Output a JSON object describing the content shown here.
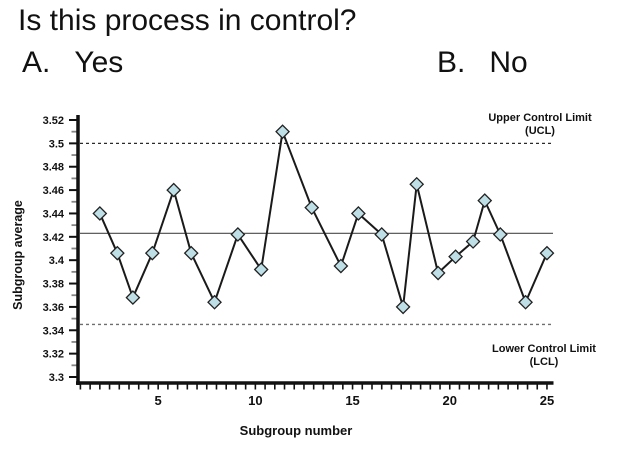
{
  "slide": {
    "title": "Is this process in control?",
    "answers": [
      {
        "letter": "A.",
        "label": "Yes"
      },
      {
        "letter": "B.",
        "label": "No"
      }
    ]
  },
  "chart_data": {
    "type": "line",
    "subtype": "control-chart",
    "title": "",
    "xlabel": "Subgroup number",
    "ylabel": "Subgroup average",
    "x": [
      2,
      2.9,
      3.7,
      4.7,
      5.8,
      6.7,
      7.9,
      9.1,
      10.3,
      11.4,
      12.9,
      14.4,
      15.3,
      16.5,
      17.6,
      18.3,
      19.4,
      20.3,
      21.2,
      21.8,
      22.6,
      23.9,
      25
    ],
    "y": [
      3.44,
      3.406,
      3.368,
      3.406,
      3.46,
      3.406,
      3.364,
      3.422,
      3.392,
      3.51,
      3.445,
      3.395,
      3.44,
      3.422,
      3.36,
      3.465,
      3.389,
      3.403,
      3.416,
      3.451,
      3.422,
      3.364,
      3.406
    ],
    "center_line": 3.423,
    "upper_control_limit": 3.5,
    "lower_control_limit": 3.345,
    "ucl_label_lines": [
      "Upper Control Limit",
      "(UCL)"
    ],
    "lcl_label_lines": [
      "Lower Control Limit",
      "(LCL)"
    ],
    "y_tick_labels": [
      "3.3",
      "3.32",
      "3.34",
      "3.36",
      "3.38",
      "3.4",
      "3.42",
      "3.44",
      "3.46",
      "3.48",
      "3.5",
      "3.52"
    ],
    "x_tick_values": [
      5,
      10,
      15,
      20,
      25
    ],
    "xlim": [
      1,
      25.3
    ],
    "ylim": [
      3.3,
      3.52
    ],
    "x_minor_step": 0.5,
    "y_minor_step": 0.01,
    "grid": false,
    "legend": "none",
    "marker": "diamond",
    "colors": {
      "marker_fill": "#bfdfe6",
      "marker_stroke": "#222222",
      "series_line": "#1a1a1a",
      "center_line": "#4a4a4a",
      "ucl_line": "#2a2a2a",
      "lcl_line": "#6e6e6e",
      "axis": "#111111",
      "minor_tick": "#858585"
    }
  }
}
